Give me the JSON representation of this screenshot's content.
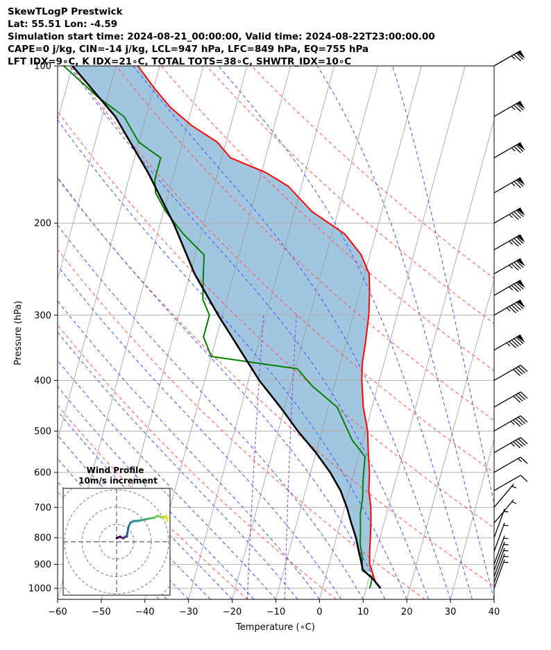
{
  "header": {
    "line1": "SkewTLogP Prestwick",
    "line2": "Lat: 55.51   Lon: -4.59",
    "line3": "Simulation start time: 2024-08-21_00:00:00, Valid time: 2024-08-22T23:00:00.00",
    "line4": "CAPE=0 j/kg, CIN=-14 j/kg, LCL=947 hPa, LFC=849 hPa, EQ=755 hPa",
    "line5": "LFT IDX=9∘C, K IDX=21∘C, TOTAL TOTS=38∘C, SHWTR_IDX=10∘C"
  },
  "colors": {
    "temperature": "#ff0000",
    "dewpoint": "#008000",
    "parcel": "#000000",
    "cape_fill": "#a2c6df",
    "dry_adiabat": "#ff4d4d",
    "moist_adiabat": "#3a50ff",
    "mixing_ratio": "#8c3cd0",
    "isotherm": "#999999",
    "hodo_circle": "#777777"
  },
  "chart_data": [
    {
      "type": "line",
      "title": "",
      "xlabel": "Temperature (∘C)",
      "ylabel": "Pressure (hPa)",
      "xlim": [
        -60,
        40
      ],
      "ylim": [
        1050,
        100
      ],
      "y_scale": "log",
      "skew": true,
      "x_ticks": [
        "−60",
        "−50",
        "−40",
        "−30",
        "−20",
        "−10",
        "0",
        "10",
        "20",
        "30",
        "40"
      ],
      "y_ticks": [
        "100",
        "200",
        "300",
        "400",
        "500",
        "600",
        "700",
        "800",
        "900",
        "1000"
      ],
      "grid": true,
      "series": [
        {
          "key": "temperature",
          "x": [
            13.3,
            11.8,
            11.0,
            10.2,
            9.3,
            8.5,
            7.8,
            7.0,
            6.0,
            4.5,
            3.5,
            2.0,
            0.5,
            -2.0,
            -4.0,
            -5.0,
            -5.5,
            -6.5,
            -7.8,
            -9.0,
            -12.0,
            -17.0,
            -26.0,
            -33.0,
            -39.0,
            -48.0,
            -52.0,
            -59.0,
            -65.0,
            -70.0,
            -75.0
          ],
          "p": [
            1000,
            975,
            950,
            925,
            900,
            850,
            800,
            750,
            700,
            650,
            600,
            550,
            500,
            450,
            400,
            370,
            340,
            300,
            270,
            250,
            230,
            210,
            190,
            170,
            160,
            150,
            140,
            130,
            120,
            110,
            100
          ]
        },
        {
          "key": "dewpoint",
          "x": [
            10.8,
            10.8,
            10.6,
            8.0,
            7.2,
            5.8,
            5.0,
            4.0,
            3.5,
            2.5,
            1.5,
            -2.5,
            -8.0,
            -15.0,
            -19.5,
            -40.0,
            -43.0,
            -43.0,
            -45.5,
            -46.5,
            -48.0,
            -54.0,
            -59.5,
            -63.0,
            -64.0,
            -64.0,
            -70.0,
            -75.0,
            -82.0,
            -92.0
          ],
          "p": [
            1000,
            975,
            950,
            925,
            875,
            820,
            770,
            720,
            670,
            620,
            560,
            520,
            450,
            410,
            380,
            360,
            330,
            300,
            280,
            260,
            230,
            210,
            190,
            175,
            165,
            150,
            140,
            125,
            115,
            100
          ]
        },
        {
          "key": "parcel",
          "x": [
            13.3,
            11.0,
            9.5,
            8.0,
            7.5,
            6.0,
            4.5,
            2.5,
            0.5,
            -2.0,
            -5.5,
            -10.0,
            -15.5,
            -21.0,
            -27.5,
            -41.0,
            -49.0,
            -57.0,
            -66.0,
            -77.0,
            -90.0
          ],
          "p": [
            1000,
            960,
            940,
            920,
            900,
            850,
            800,
            750,
            700,
            650,
            600,
            550,
            500,
            450,
            400,
            300,
            250,
            200,
            160,
            125,
            100
          ]
        }
      ]
    },
    {
      "type": "line",
      "title": "Wind Profile",
      "subtitle": "10m/s increment",
      "series": [
        {
          "key": "hodograph",
          "u": [
            0.0,
            1.0,
            1.5,
            2.0,
            2.5,
            3.0,
            3.0,
            3.2,
            3.5,
            4.0,
            5.0,
            6.0,
            7.0,
            8.0,
            9.0,
            10.0,
            11.0,
            12.0,
            13.0,
            13.8,
            14.2,
            14.5,
            14.8
          ],
          "v": [
            1.0,
            1.5,
            1.2,
            1.0,
            1.5,
            1.5,
            2.0,
            3.0,
            4.5,
            5.5,
            6.0,
            6.0,
            6.2,
            6.4,
            6.6,
            6.8,
            7.0,
            7.5,
            7.0,
            7.2,
            7.5,
            6.0,
            7.0
          ]
        }
      ]
    }
  ],
  "winds": {
    "p": [
      100,
      125,
      150,
      175,
      200,
      225,
      250,
      275,
      300,
      350,
      400,
      450,
      500,
      550,
      600,
      650,
      700,
      750,
      800,
      850,
      900,
      925,
      950,
      975,
      1000
    ],
    "speed_kt": [
      75,
      75,
      75,
      75,
      85,
      85,
      85,
      85,
      95,
      95,
      40,
      40,
      45,
      45,
      15,
      10,
      5,
      5,
      5,
      5,
      5,
      5,
      5,
      5,
      5
    ],
    "dir_deg": [
      240,
      240,
      240,
      240,
      240,
      240,
      240,
      240,
      240,
      240,
      240,
      240,
      240,
      240,
      240,
      240,
      220,
      220,
      200,
      200,
      200,
      200,
      200,
      200,
      200
    ]
  }
}
